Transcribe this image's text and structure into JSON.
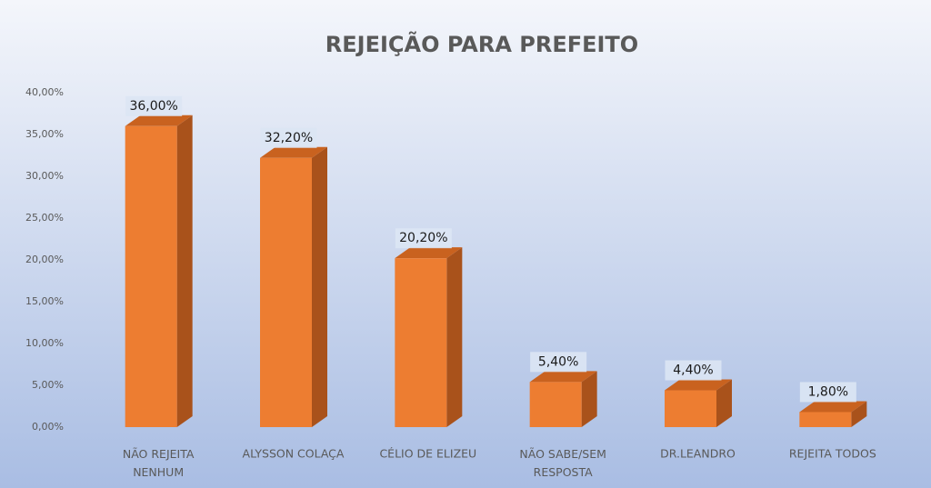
{
  "chart_data": {
    "type": "bar3d",
    "title": "REJEIÇÃO PARA PREFEITO",
    "categories": [
      "NÃO REJEITA NENHUM",
      "ALYSSON COLAÇA",
      "CÉLIO DE ELIZEU",
      "NÃO SABE/SEM RESPOSTA",
      "DR.LEANDRO",
      "REJEITA TODOS"
    ],
    "values": [
      36,
      32.2,
      20.2,
      5.4,
      4.4,
      1.8
    ],
    "value_labels": [
      "36,00%",
      "32,20%",
      "20,20%",
      "5,40%",
      "4,40%",
      "1,80%"
    ],
    "color": "#ed7d31",
    "ylim": [
      0,
      40
    ],
    "yticks": [
      {
        "value": 0,
        "label": "0,00%"
      },
      {
        "value": 5,
        "label": "5,00%"
      },
      {
        "value": 10,
        "label": "10,00%"
      },
      {
        "value": 15,
        "label": "15,00%"
      },
      {
        "value": 20,
        "label": "20,00%"
      },
      {
        "value": 25,
        "label": "25,00%"
      },
      {
        "value": 30,
        "label": "30,00%"
      },
      {
        "value": 35,
        "label": "35,00%"
      },
      {
        "value": 40,
        "label": "40,00%"
      }
    ]
  }
}
